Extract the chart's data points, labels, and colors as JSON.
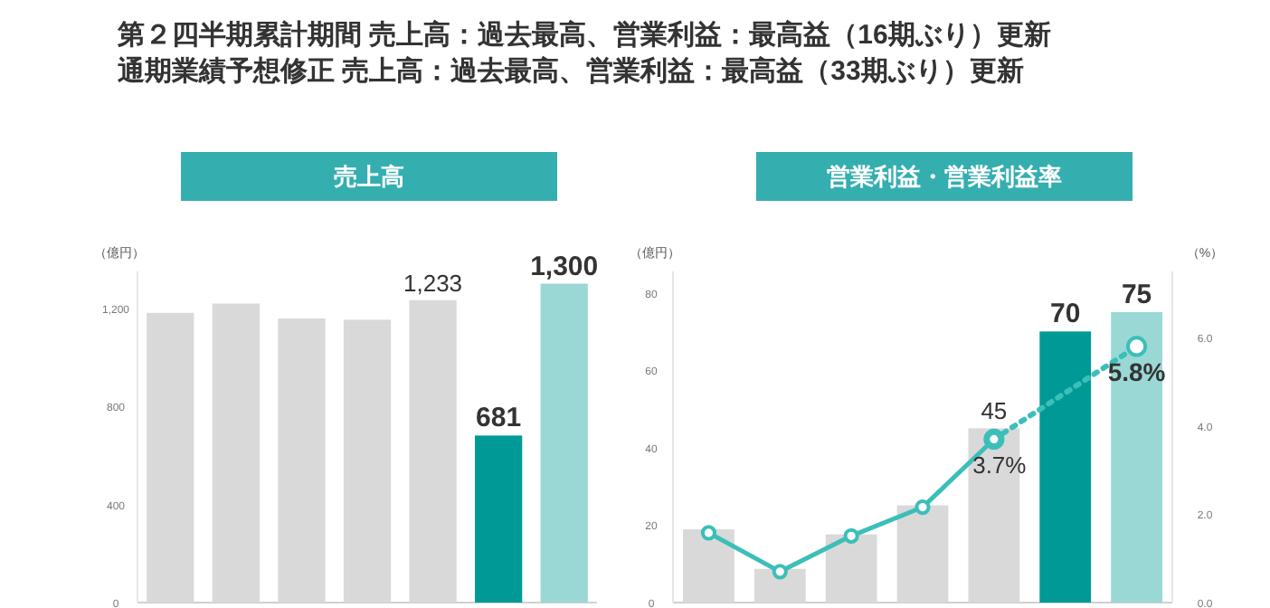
{
  "chart_data": [
    {
      "type": "bar",
      "title": "売上高",
      "annotations": [
        "第２四半期累計期間 売上高：過去最高、営業利益：最高益（16期ぶり）更新",
        "通期業績予想修正 売上高：過去最高、営業利益：最高益（33期ぶり）更新"
      ],
      "ylabel": "（億円）",
      "categories": [
        null,
        null,
        null,
        null,
        null,
        null,
        null
      ],
      "values": [
        1181,
        1219,
        1158,
        1153,
        1233,
        681,
        1300
      ],
      "colors": [
        "#d9d9d9",
        "#d9d9d9",
        "#d9d9d9",
        "#d9d9d9",
        "#d9d9d9",
        "#009a96",
        "#9ad8d5"
      ],
      "value_labels": [
        null,
        null,
        null,
        null,
        "1,233",
        "681",
        "1,300"
      ],
      "ylim": [
        0,
        1350
      ],
      "yticks": [
        0,
        400,
        800,
        {
          "value": 1200,
          "label": "1,200"
        }
      ]
    },
    {
      "type": "bar",
      "title": "営業利益・営業利益率",
      "ylabel": "（億円）",
      "y2label": "（%）",
      "categories": [
        null,
        null,
        null,
        null,
        null,
        null,
        null
      ],
      "ylim": [
        0,
        85.5
      ],
      "yticks": [
        0,
        20,
        40,
        60,
        80
      ],
      "y2lim": [
        0,
        7.5
      ],
      "y2ticks": [
        {
          "value": 0,
          "label": "0.0"
        },
        {
          "value": 2,
          "label": "2.0"
        },
        {
          "value": 4,
          "label": "4.0"
        },
        {
          "value": 6,
          "label": "6.0"
        }
      ],
      "series": [
        {
          "type": "bar",
          "values": [
            18.9,
            8.7,
            17.6,
            25.1,
            45,
            70,
            75
          ],
          "colors": [
            "#d9d9d9",
            "#d9d9d9",
            "#d9d9d9",
            "#d9d9d9",
            "#d9d9d9",
            "#009a96",
            "#9ad8d5"
          ],
          "value_labels": [
            null,
            null,
            null,
            null,
            "45",
            "70",
            "75"
          ]
        },
        {
          "type": "line",
          "axis": "y2",
          "color": "#3bbfb8",
          "marker": "circle",
          "line_style": "dotted",
          "values": [
            null,
            null,
            null,
            null,
            3.7,
            null,
            5.8
          ],
          "value_labels": [
            null,
            null,
            null,
            null,
            null,
            null,
            "5.8%"
          ]
        },
        {
          "type": "line",
          "axis": "y2",
          "color": "#3bbfb8",
          "marker": "circle",
          "line_style": "solid",
          "values": [
            1.58,
            0.7,
            1.51,
            2.16,
            3.7,
            null,
            null
          ],
          "value_labels": [
            null,
            null,
            null,
            null,
            "3.7%",
            null,
            null
          ]
        }
      ]
    }
  ]
}
